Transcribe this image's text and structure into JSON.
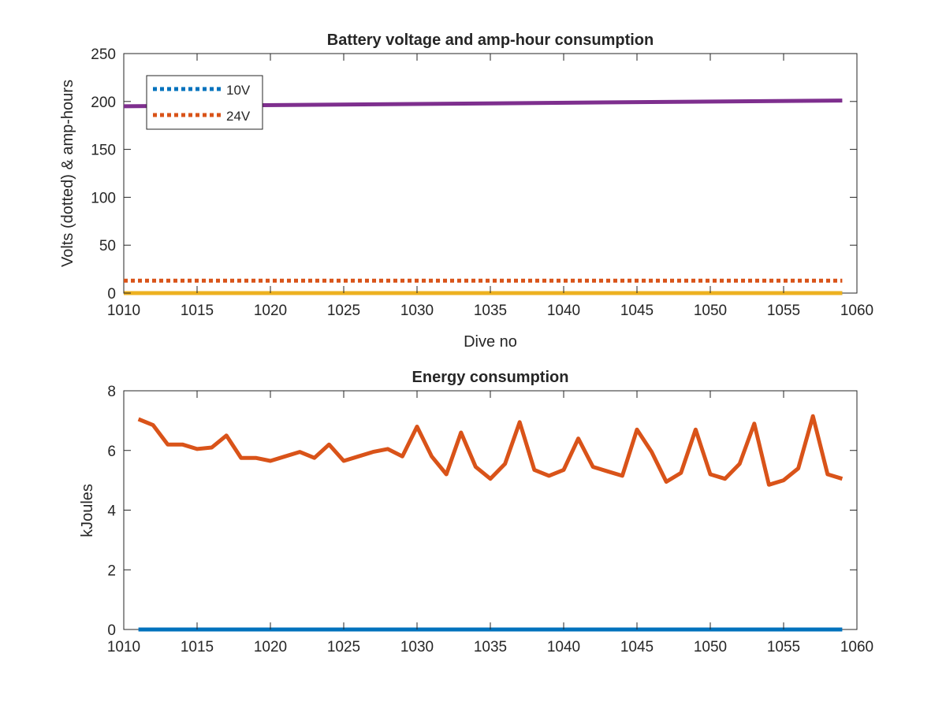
{
  "colors": {
    "blue": "#0072BD",
    "orange": "#D95319",
    "yellow": "#EDB120",
    "purple": "#7E2F8E",
    "axis": "#262626"
  },
  "chart_data": [
    {
      "type": "line",
      "title": "Battery voltage and amp-hour consumption",
      "xlabel": "Dive no",
      "ylabel": "Volts (dotted) & amp-hours",
      "xlim": [
        1010,
        1060
      ],
      "ylim": [
        0,
        250
      ],
      "xticks": [
        "1010",
        "1015",
        "1020",
        "1025",
        "1030",
        "1035",
        "1040",
        "1045",
        "1050",
        "1055",
        "1060"
      ],
      "yticks": [
        "0",
        "50",
        "100",
        "150",
        "200",
        "250"
      ],
      "grid": false,
      "legend_placement": "top-left",
      "legend": [
        "10V",
        "24V"
      ],
      "x": [
        1010,
        1059
      ],
      "series": [
        {
          "name": "10V",
          "style": "dotted",
          "color": "blue",
          "values": [
            0,
            0
          ]
        },
        {
          "name": "24V",
          "style": "dotted",
          "color": "orange",
          "values": [
            13,
            13
          ]
        },
        {
          "style": "solid",
          "color": "yellow",
          "values": [
            0,
            0
          ]
        },
        {
          "style": "solid",
          "color": "purple",
          "values": [
            195,
            201
          ]
        }
      ]
    },
    {
      "type": "line",
      "title": "Energy consumption",
      "xlabel": "",
      "ylabel": "kJoules",
      "xlim": [
        1010,
        1060
      ],
      "ylim": [
        0,
        8
      ],
      "xticks": [
        "1010",
        "1015",
        "1020",
        "1025",
        "1030",
        "1035",
        "1040",
        "1045",
        "1050",
        "1055",
        "1060"
      ],
      "yticks": [
        "0",
        "2",
        "4",
        "6",
        "8"
      ],
      "grid": false,
      "x": [
        1011,
        1012,
        1013,
        1014,
        1015,
        1016,
        1017,
        1018,
        1019,
        1020,
        1021,
        1022,
        1023,
        1024,
        1025,
        1026,
        1027,
        1028,
        1029,
        1030,
        1031,
        1032,
        1033,
        1034,
        1035,
        1036,
        1037,
        1038,
        1039,
        1040,
        1041,
        1042,
        1043,
        1044,
        1045,
        1046,
        1047,
        1048,
        1049,
        1050,
        1051,
        1052,
        1053,
        1054,
        1055,
        1056,
        1057,
        1058,
        1059
      ],
      "series": [
        {
          "style": "solid",
          "color": "orange",
          "values": [
            7.05,
            6.85,
            6.2,
            6.2,
            6.05,
            6.1,
            6.5,
            5.75,
            5.75,
            5.65,
            5.8,
            5.95,
            5.75,
            6.2,
            5.65,
            5.8,
            5.95,
            6.05,
            5.8,
            6.8,
            5.8,
            5.2,
            6.6,
            5.45,
            5.05,
            5.55,
            6.95,
            5.35,
            5.15,
            5.35,
            6.4,
            5.45,
            5.3,
            5.15,
            6.7,
            5.95,
            4.95,
            5.25,
            6.7,
            5.2,
            5.05,
            5.55,
            6.9,
            4.85,
            5.0,
            5.4,
            7.15,
            5.2,
            5.05
          ]
        },
        {
          "style": "solid",
          "color": "blue",
          "values": [
            0,
            0,
            0,
            0,
            0,
            0,
            0,
            0,
            0,
            0,
            0,
            0,
            0,
            0,
            0,
            0,
            0,
            0,
            0,
            0,
            0,
            0,
            0,
            0,
            0,
            0,
            0,
            0,
            0,
            0,
            0,
            0,
            0,
            0,
            0,
            0,
            0,
            0,
            0,
            0,
            0,
            0,
            0,
            0,
            0,
            0,
            0,
            0,
            0
          ]
        }
      ]
    }
  ]
}
